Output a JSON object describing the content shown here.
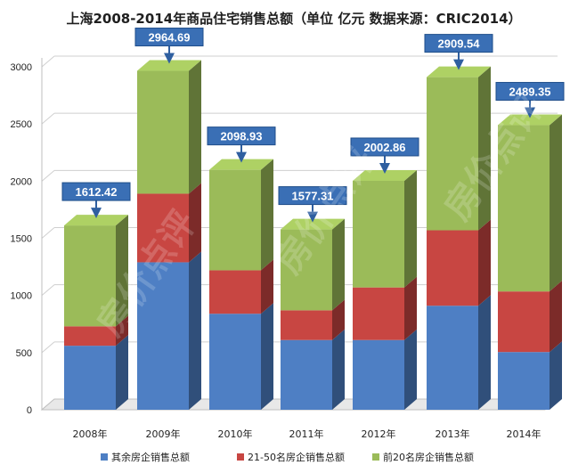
{
  "chart_data": {
    "type": "bar",
    "stacked": true,
    "title": "上海2008-2014年商品住宅销售总额（单位 亿元 数据来源：CRIC2014）",
    "categories": [
      "2008年",
      "2009年",
      "2010年",
      "2011年",
      "2012年",
      "2013年",
      "2014年"
    ],
    "series": [
      {
        "name": "其余房企销售总额",
        "color": "#4e7fc4",
        "values": [
          560,
          1290,
          840,
          610,
          610,
          910,
          505
        ]
      },
      {
        "name": "21-50名房企销售总额",
        "color": "#c84642",
        "values": [
          170,
          600,
          380,
          260,
          460,
          660,
          530
        ]
      },
      {
        "name": "前20名房企销售总额",
        "color": "#9bbb59",
        "values": [
          882.42,
          1074.69,
          878.93,
          707.31,
          932.86,
          1339.54,
          1454.35
        ]
      }
    ],
    "totals": [
      "1612.42",
      "2964.69",
      "2098.93",
      "1577.31",
      "2002.86",
      "2909.54",
      "2489.35"
    ],
    "yticks": [
      0,
      500,
      1000,
      1500,
      2000,
      2500,
      3000
    ],
    "ylim": [
      0,
      3000
    ],
    "xlabel": "",
    "ylabel": "",
    "grid": true,
    "legend": "bottom"
  },
  "watermark": "房价点评"
}
